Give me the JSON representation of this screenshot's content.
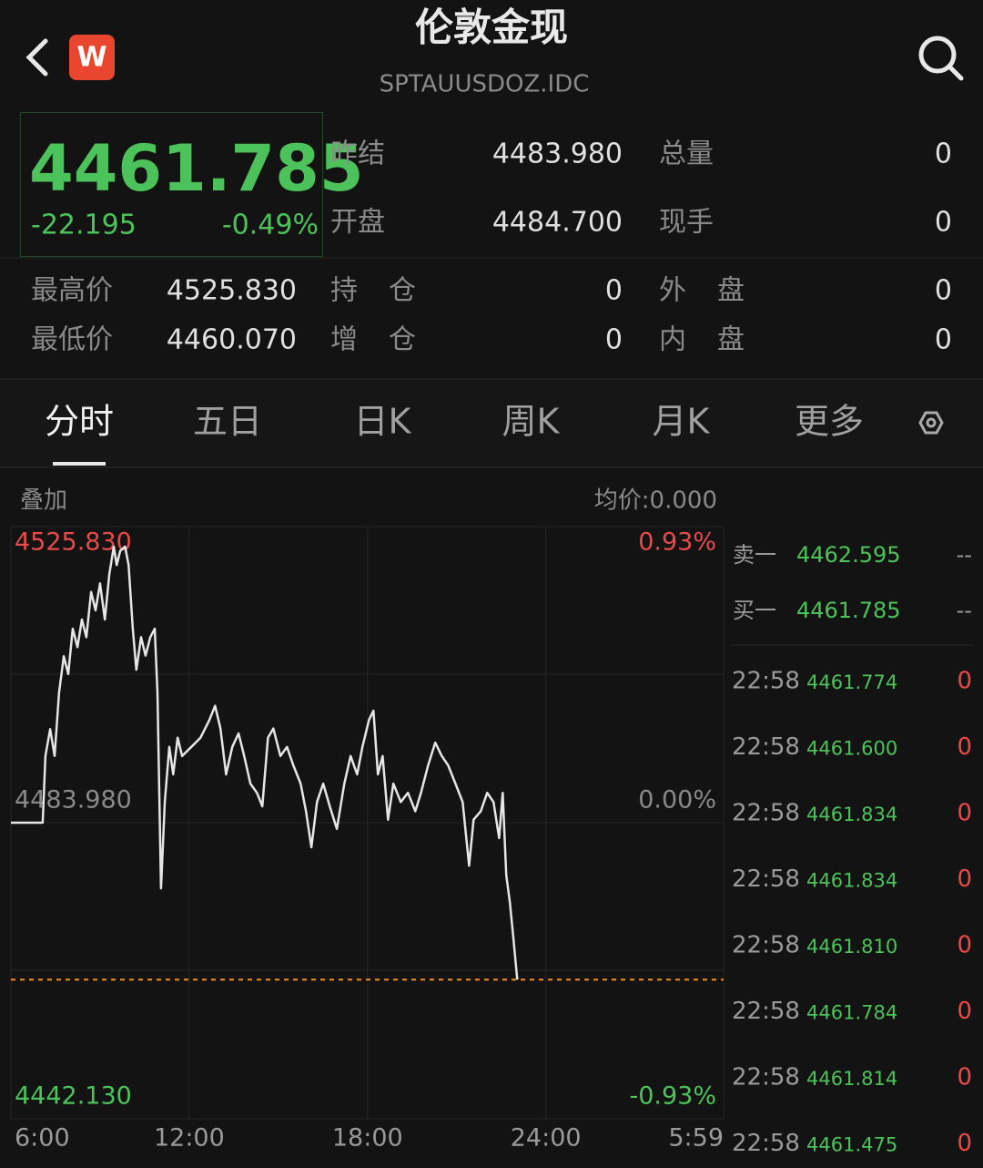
{
  "header": {
    "app_icon": "W",
    "title": "伦敦金现",
    "subtitle": "SPTAUUSDOZ.IDC"
  },
  "quote": {
    "price": "4461.785",
    "change": "-22.195",
    "change_pct": "-0.49%",
    "stats": [
      {
        "label": "昨结",
        "value": "4483.980"
      },
      {
        "label": "总量",
        "value": "0"
      },
      {
        "label": "开盘",
        "value": "4484.700"
      },
      {
        "label": "现手",
        "value": "0"
      }
    ]
  },
  "details": [
    {
      "label": "最高价",
      "value": "4525.830"
    },
    {
      "label": "持仓",
      "value": "0"
    },
    {
      "label": "外盘",
      "value": "0"
    },
    {
      "label": "最低价",
      "value": "4460.070"
    },
    {
      "label": "增仓",
      "value": "0"
    },
    {
      "label": "内盘",
      "value": "0"
    }
  ],
  "tabs": [
    "分时",
    "五日",
    "日K",
    "周K",
    "月K",
    "更多"
  ],
  "chart_header": {
    "overlay": "叠加",
    "avg": "均价:0.000"
  },
  "order_book": [
    {
      "side": "卖一",
      "price": "4462.595",
      "vol": "--"
    },
    {
      "side": "买一",
      "price": "4461.785",
      "vol": "--"
    }
  ],
  "trades": [
    {
      "time": "22:58",
      "price": "4461.774",
      "vol": "0"
    },
    {
      "time": "22:58",
      "price": "4461.600",
      "vol": "0"
    },
    {
      "time": "22:58",
      "price": "4461.834",
      "vol": "0"
    },
    {
      "time": "22:58",
      "price": "4461.834",
      "vol": "0"
    },
    {
      "time": "22:58",
      "price": "4461.810",
      "vol": "0"
    },
    {
      "time": "22:58",
      "price": "4461.784",
      "vol": "0"
    },
    {
      "time": "22:58",
      "price": "4461.814",
      "vol": "0"
    },
    {
      "time": "22:58",
      "price": "4461.475",
      "vol": "0"
    }
  ],
  "chart_data": {
    "type": "line",
    "color": "#e6e6e6",
    "x": [
      6.0,
      7.07,
      7.16,
      7.32,
      7.47,
      7.62,
      7.78,
      7.93,
      8.08,
      8.24,
      8.39,
      8.54,
      8.7,
      8.85,
      9.0,
      9.16,
      9.31,
      9.46,
      9.56,
      9.68,
      9.84,
      9.96,
      10.1,
      10.22,
      10.38,
      10.53,
      10.69,
      10.84,
      10.93,
      11.05,
      11.18,
      11.33,
      11.46,
      11.61,
      11.76,
      12.07,
      12.38,
      12.68,
      12.87,
      13.05,
      13.24,
      13.45,
      13.66,
      13.85,
      14.06,
      14.28,
      14.46,
      14.65,
      14.83,
      15.07,
      15.29,
      15.5,
      15.75,
      15.93,
      16.11,
      16.3,
      16.51,
      16.73,
      16.97,
      17.22,
      17.43,
      17.65,
      17.83,
      18.05,
      18.2,
      18.35,
      18.51,
      18.69,
      18.87,
      19.12,
      19.36,
      19.61,
      19.8,
      20.04,
      20.28,
      20.5,
      20.71,
      20.96,
      21.2,
      21.42,
      21.57,
      21.81,
      22.03,
      22.24,
      22.43,
      22.55,
      22.67,
      22.79,
      22.91,
      23.04
    ],
    "values": [
      4483.98,
      4483.98,
      4493.4,
      4497.2,
      4493.4,
      4502.4,
      4507.5,
      4505.0,
      4511.4,
      4508.8,
      4512.7,
      4510.2,
      4516.6,
      4514.0,
      4517.8,
      4512.7,
      4519.1,
      4523.0,
      4520.4,
      4522.4,
      4523.0,
      4520.4,
      4511.4,
      4505.6,
      4510.2,
      4507.6,
      4510.2,
      4511.4,
      4502.4,
      4474.7,
      4487.0,
      4494.7,
      4490.8,
      4496.0,
      4493.4,
      4494.7,
      4496.0,
      4498.5,
      4500.5,
      4497.3,
      4490.8,
      4494.7,
      4496.6,
      4493.4,
      4489.5,
      4488.2,
      4486.3,
      4496.0,
      4497.3,
      4493.4,
      4494.7,
      4492.1,
      4489.5,
      4485.6,
      4480.5,
      4486.9,
      4489.5,
      4486.3,
      4483.1,
      4489.5,
      4493.4,
      4490.8,
      4494.7,
      4498.5,
      4499.8,
      4490.8,
      4493.4,
      4484.4,
      4489.5,
      4486.9,
      4488.2,
      4485.6,
      4488.2,
      4492.1,
      4495.3,
      4493.4,
      4492.1,
      4489.5,
      4486.9,
      4477.9,
      4484.4,
      4485.6,
      4488.2,
      4486.9,
      4481.8,
      4488.2,
      4476.6,
      4472.7,
      4467.6,
      4461.8
    ],
    "xlim": [
      6,
      29.983
    ],
    "xticks": [
      {
        "value": 6,
        "label": "6:00"
      },
      {
        "value": 12,
        "label": "12:00"
      },
      {
        "value": 18,
        "label": "18:00"
      },
      {
        "value": 24,
        "label": "24:00"
      },
      {
        "value": 29.983,
        "label": "5:59"
      }
    ],
    "ylim": [
      4442.13,
      4525.83
    ],
    "yticks": [
      {
        "value": 4525.83,
        "label": "4525.830"
      },
      {
        "value": 4483.98,
        "label": "4483.980"
      },
      {
        "value": 4442.13,
        "label": "4442.130"
      }
    ],
    "y2lim": [
      -0.93,
      0.93
    ],
    "y2ticks": [
      {
        "value": 0.93,
        "label": "0.93%"
      },
      {
        "value": 0,
        "label": "0.00%"
      },
      {
        "value": -0.93,
        "label": "-0.93%"
      }
    ]
  }
}
